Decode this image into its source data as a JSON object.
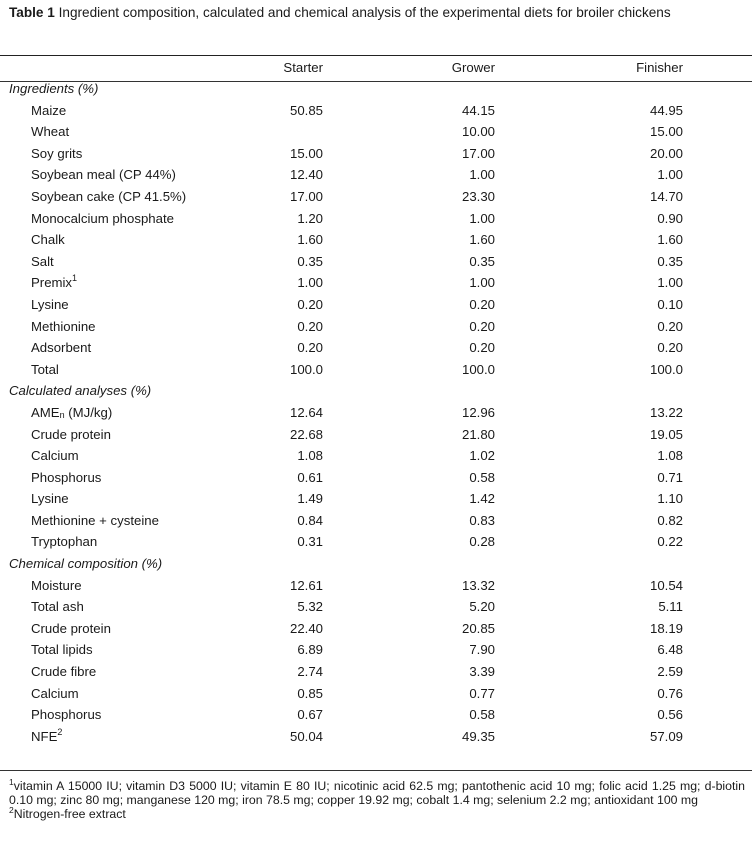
{
  "caption": {
    "label": "Table 1",
    "text": " Ingredient composition, calculated and chemical analysis of the experimental diets for broiler chickens"
  },
  "columns": [
    "",
    "Starter",
    "Grower",
    "Finisher"
  ],
  "sections": {
    "ingredients": {
      "title": "Ingredients (%)",
      "rows": [
        {
          "label": "Maize",
          "starter": "50.85",
          "grower": "44.15",
          "finisher": "44.95"
        },
        {
          "label": "Wheat",
          "starter": "",
          "grower": "10.00",
          "finisher": "15.00"
        },
        {
          "label": "Soy grits",
          "starter": "15.00",
          "grower": "17.00",
          "finisher": "20.00"
        },
        {
          "label": "Soybean meal (CP 44%)",
          "starter": "12.40",
          "grower": "1.00",
          "finisher": "1.00"
        },
        {
          "label": "Soybean cake (CP 41.5%)",
          "starter": "17.00",
          "grower": "23.30",
          "finisher": "14.70"
        },
        {
          "label": "Monocalcium phosphate",
          "starter": "1.20",
          "grower": "1.00",
          "finisher": "0.90"
        },
        {
          "label": "Chalk",
          "starter": "1.60",
          "grower": "1.60",
          "finisher": "1.60"
        },
        {
          "label": "Salt",
          "starter": "0.35",
          "grower": "0.35",
          "finisher": "0.35"
        },
        {
          "label": "Premix",
          "sup": "1",
          "starter": "1.00",
          "grower": "1.00",
          "finisher": "1.00"
        },
        {
          "label": "Lysine",
          "starter": "0.20",
          "grower": "0.20",
          "finisher": "0.10"
        },
        {
          "label": "Methionine",
          "starter": "0.20",
          "grower": "0.20",
          "finisher": "0.20"
        },
        {
          "label": "Adsorbent",
          "starter": "0.20",
          "grower": "0.20",
          "finisher": "0.20"
        },
        {
          "label": "Total",
          "starter": "100.0",
          "grower": "100.0",
          "finisher": "100.0"
        }
      ]
    },
    "calculated": {
      "title": "Calculated analyses (%)",
      "rows": [
        {
          "label": "AME",
          "sub": "n",
          "label_tail": " (MJ/kg)",
          "starter": "12.64",
          "grower": "12.96",
          "finisher": "13.22"
        },
        {
          "label": "Crude protein",
          "starter": "22.68",
          "grower": "21.80",
          "finisher": "19.05"
        },
        {
          "label": "Calcium",
          "starter": "1.08",
          "grower": "1.02",
          "finisher": "1.08"
        },
        {
          "label": "Phosphorus",
          "starter": "0.61",
          "grower": "0.58",
          "finisher": "0.71"
        },
        {
          "label": "Lysine",
          "starter": "1.49",
          "grower": "1.42",
          "finisher": "1.10"
        },
        {
          "label": "Methionine + cysteine",
          "starter": "0.84",
          "grower": "0.83",
          "finisher": "0.82"
        },
        {
          "label": "Tryptophan",
          "starter": "0.31",
          "grower": "0.28",
          "finisher": "0.22"
        }
      ]
    },
    "chemical": {
      "title": "Chemical composition (%)",
      "rows": [
        {
          "label": "Moisture",
          "starter": "12.61",
          "grower": "13.32",
          "finisher": "10.54"
        },
        {
          "label": "Total ash",
          "starter": "5.32",
          "grower": "5.20",
          "finisher": "5.11"
        },
        {
          "label": "Crude protein",
          "starter": "22.40",
          "grower": "20.85",
          "finisher": "18.19"
        },
        {
          "label": "Total lipids",
          "starter": "6.89",
          "grower": "7.90",
          "finisher": "6.48"
        },
        {
          "label": "Crude fibre",
          "starter": "2.74",
          "grower": "3.39",
          "finisher": "2.59"
        },
        {
          "label": "Calcium",
          "starter": "0.85",
          "grower": "0.77",
          "finisher": "0.76"
        },
        {
          "label": "Phosphorus",
          "starter": "0.67",
          "grower": "0.58",
          "finisher": "0.56"
        },
        {
          "label": "NFE",
          "sup": "2",
          "starter": "50.04",
          "grower": "49.35",
          "finisher": "57.09"
        }
      ]
    }
  },
  "footnotes": [
    {
      "mark": "1",
      "text": "vitamin A 15000 IU; vitamin D3 5000 IU; vitamin E 80 IU; nicotinic acid 62.5 mg; pantothenic acid 10 mg; folic acid 1.25 mg; d-biotin 0.10 mg; zinc 80 mg; manganese 120 mg; iron 78.5 mg; copper 19.92 mg; cobalt 1.4 mg; selenium 2.2 mg; antioxidant 100 mg"
    },
    {
      "mark": "2",
      "text": "Nitrogen-free extract"
    }
  ]
}
